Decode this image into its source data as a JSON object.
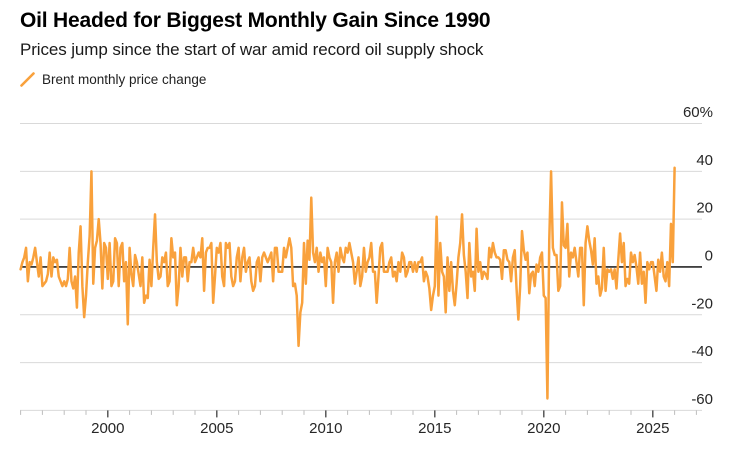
{
  "header": {
    "title": "Oil Headed for Biggest Monthly Gain Since 1990",
    "subtitle": "Prices jump since the start of war amid record oil supply shock"
  },
  "legend": {
    "series_label": "Brent monthly price change"
  },
  "colors": {
    "series": "#F9A13C",
    "grid": "#D9D9D9",
    "zero_line": "#000000",
    "axis_line": "#C9C9C9",
    "minor_tick": "#BDBDBD",
    "major_tick": "#4D4D4D",
    "axis_text": "#262626",
    "background": "#FFFFFF"
  },
  "chart_data": {
    "type": "line",
    "title": "Oil Headed for Biggest Monthly Gain Since 1990",
    "subtitle": "Prices jump since the start of war amid record oil supply shock",
    "unit": "%",
    "frequency": "monthly",
    "x_start_year": 1996,
    "x_end": "2026-01",
    "ylim": [
      -60,
      60
    ],
    "grid": "horizontal",
    "legend_position": "top-left",
    "yticks": [
      {
        "value": 60,
        "label": "60%"
      },
      {
        "value": 40,
        "label": "40"
      },
      {
        "value": 20,
        "label": "20"
      },
      {
        "value": 0,
        "label": "0"
      },
      {
        "value": -20,
        "label": "-20"
      },
      {
        "value": -40,
        "label": "-40"
      },
      {
        "value": -60,
        "label": "-60"
      }
    ],
    "xticks_major": [
      {
        "year": 2000,
        "label": "2000"
      },
      {
        "year": 2005,
        "label": "2005"
      },
      {
        "year": 2010,
        "label": "2010"
      },
      {
        "year": 2015,
        "label": "2015"
      },
      {
        "year": 2020,
        "label": "2020"
      },
      {
        "year": 2025,
        "label": "2025"
      }
    ],
    "xticks_minor_years": {
      "from": 1996,
      "to": 2027
    },
    "series": [
      {
        "name": "Brent monthly price change",
        "start": "1996-01",
        "values": [
          -1,
          2,
          4,
          8,
          -6,
          2,
          1,
          4,
          8,
          2,
          -4,
          4,
          -8,
          -7,
          -6,
          -3,
          6,
          -4,
          4,
          2,
          3,
          -4,
          -6,
          -8,
          -6,
          -8,
          -5,
          8,
          -6,
          -9,
          -4,
          -17,
          6,
          17,
          -8,
          -21,
          -12,
          2,
          13,
          40,
          -7,
          8,
          11,
          20,
          10,
          -9,
          10,
          8,
          -5,
          10,
          -8,
          -6,
          12,
          10,
          -8,
          8,
          10,
          -6,
          2,
          -24,
          8,
          -3,
          -8,
          5,
          2,
          -3,
          -8,
          4,
          -15,
          -12,
          -13,
          3,
          -8,
          8,
          22,
          2,
          -5,
          -4,
          4,
          2,
          6,
          -8,
          -6,
          12,
          4,
          6,
          -16,
          -8,
          8,
          -4,
          4,
          4,
          -6,
          2,
          2,
          8,
          2,
          4,
          6,
          4,
          12,
          -10,
          6,
          8,
          8,
          10,
          -15,
          -4,
          8,
          6,
          10,
          -4,
          -8,
          10,
          8,
          10,
          -4,
          -8,
          -6,
          4,
          8,
          -6,
          4,
          8,
          -2,
          2,
          4,
          -6,
          -10,
          -8,
          2,
          4,
          -6,
          4,
          6,
          4,
          2,
          4,
          6,
          -6,
          8,
          8,
          -2,
          -2,
          -2,
          8,
          4,
          8,
          12,
          8,
          -8,
          -7,
          -12,
          -33,
          -19,
          -15,
          10,
          -7,
          11,
          3,
          29,
          6,
          2,
          8,
          -2,
          6,
          2,
          4,
          -8,
          8,
          4,
          2,
          -15,
          2,
          6,
          -2,
          8,
          4,
          2,
          8,
          6,
          10,
          6,
          2,
          -7,
          -2,
          4,
          -8,
          -4,
          8,
          -2,
          2,
          4,
          10,
          -2,
          -2,
          -15,
          -4,
          8,
          10,
          -2,
          -2,
          -2,
          2,
          4,
          -4,
          -2,
          -6,
          2,
          -2,
          6,
          4,
          -4,
          -2,
          2,
          2,
          -2,
          2,
          -2,
          2,
          2,
          4,
          -6,
          -2,
          -4,
          -9,
          -18,
          -12,
          -8,
          21,
          -12,
          10,
          -2,
          -4,
          -19,
          4,
          -10,
          2,
          -10,
          -16,
          -7,
          4,
          10,
          22,
          5,
          -2,
          -13,
          10,
          -4,
          -2,
          -10,
          16,
          -2,
          2,
          -5,
          -2,
          -3,
          -5,
          8,
          4,
          10,
          6,
          4,
          4,
          3,
          -5,
          7,
          7,
          3,
          2,
          -6,
          4,
          7,
          -9,
          -22,
          -8,
          15,
          7,
          3,
          6,
          -11,
          -3,
          -2,
          -8,
          1,
          -2,
          4,
          6,
          -12,
          -13,
          -55,
          11,
          40,
          8,
          5,
          5,
          -10,
          -8,
          27,
          9,
          8,
          18,
          -4,
          6,
          4,
          8,
          2,
          -4,
          8,
          8,
          -16,
          10,
          17,
          11,
          7,
          1,
          12,
          -7,
          -4,
          -12,
          -9,
          8,
          -10,
          -1,
          -2,
          -1,
          -5,
          -1,
          -9,
          3,
          14,
          2,
          10,
          -8,
          -5,
          -7,
          6,
          2,
          5,
          0,
          -7,
          6,
          -7,
          -2,
          -15,
          2,
          -1,
          2,
          2,
          -4,
          -10,
          3,
          -2,
          6,
          -4,
          -6,
          2,
          -8,
          18,
          2,
          41.5
        ]
      }
    ]
  }
}
